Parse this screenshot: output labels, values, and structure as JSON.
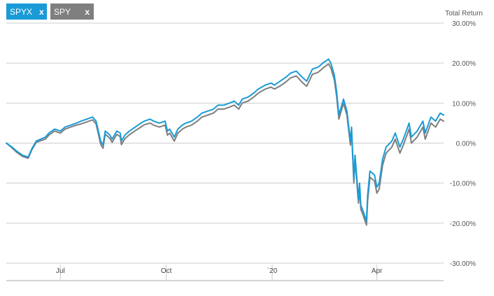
{
  "legend": {
    "items": [
      {
        "label": "SPYX",
        "remove_label": "x",
        "color": "#1a9bd7"
      },
      {
        "label": "SPY",
        "remove_label": "x",
        "color": "#7f7f7f"
      }
    ]
  },
  "chart_data": {
    "type": "line",
    "ylabel": "Total Return",
    "ylim": [
      -30,
      30
    ],
    "y_ticks": [
      30,
      20,
      10,
      0,
      -10,
      -20,
      -30
    ],
    "y_tick_labels": [
      "30.00%",
      "20.00%",
      "10.00%",
      "0.00%",
      "-10.00%",
      "-20.00%",
      "-30.00%"
    ],
    "x_tick_labels": [
      {
        "label": "Jul",
        "date": "2019-07-01"
      },
      {
        "label": "Oct",
        "date": "2019-10-01"
      },
      {
        "label": "`20",
        "date": "2020-01-01"
      },
      {
        "label": "Apr",
        "date": "2020-04-01"
      }
    ],
    "xlim": [
      "2019-05-15",
      "2020-05-29"
    ],
    "grid": true,
    "series": [
      {
        "name": "SPYX",
        "color": "#1a9bd7",
        "points": [
          [
            "2019-05-15",
            0.0
          ],
          [
            "2019-05-20",
            -1.0
          ],
          [
            "2019-05-24",
            -2.0
          ],
          [
            "2019-05-29",
            -3.0
          ],
          [
            "2019-06-03",
            -3.5
          ],
          [
            "2019-06-06",
            -1.5
          ],
          [
            "2019-06-10",
            0.5
          ],
          [
            "2019-06-14",
            1.0
          ],
          [
            "2019-06-18",
            1.5
          ],
          [
            "2019-06-21",
            2.5
          ],
          [
            "2019-06-26",
            3.5
          ],
          [
            "2019-07-01",
            3.0
          ],
          [
            "2019-07-05",
            4.0
          ],
          [
            "2019-07-10",
            4.5
          ],
          [
            "2019-07-15",
            5.0
          ],
          [
            "2019-07-19",
            5.5
          ],
          [
            "2019-07-24",
            6.0
          ],
          [
            "2019-07-29",
            6.5
          ],
          [
            "2019-08-01",
            5.5
          ],
          [
            "2019-08-05",
            0.5
          ],
          [
            "2019-08-07",
            -0.5
          ],
          [
            "2019-08-09",
            3.0
          ],
          [
            "2019-08-13",
            2.0
          ],
          [
            "2019-08-15",
            1.0
          ],
          [
            "2019-08-19",
            3.0
          ],
          [
            "2019-08-22",
            2.5
          ],
          [
            "2019-08-23",
            0.5
          ],
          [
            "2019-08-26",
            2.0
          ],
          [
            "2019-08-30",
            3.0
          ],
          [
            "2019-09-04",
            4.0
          ],
          [
            "2019-09-09",
            5.0
          ],
          [
            "2019-09-12",
            5.5
          ],
          [
            "2019-09-17",
            6.0
          ],
          [
            "2019-09-20",
            5.5
          ],
          [
            "2019-09-25",
            5.0
          ],
          [
            "2019-09-30",
            5.5
          ],
          [
            "2019-10-02",
            3.0
          ],
          [
            "2019-10-04",
            3.5
          ],
          [
            "2019-10-08",
            1.5
          ],
          [
            "2019-10-11",
            3.5
          ],
          [
            "2019-10-15",
            4.5
          ],
          [
            "2019-10-18",
            5.0
          ],
          [
            "2019-10-23",
            5.5
          ],
          [
            "2019-10-28",
            6.5
          ],
          [
            "2019-11-01",
            7.5
          ],
          [
            "2019-11-06",
            8.0
          ],
          [
            "2019-11-11",
            8.5
          ],
          [
            "2019-11-15",
            9.5
          ],
          [
            "2019-11-20",
            9.5
          ],
          [
            "2019-11-25",
            10.0
          ],
          [
            "2019-11-29",
            10.5
          ],
          [
            "2019-12-03",
            9.5
          ],
          [
            "2019-12-06",
            11.0
          ],
          [
            "2019-12-11",
            11.5
          ],
          [
            "2019-12-16",
            12.5
          ],
          [
            "2019-12-20",
            13.5
          ],
          [
            "2019-12-26",
            14.5
          ],
          [
            "2019-12-31",
            15.0
          ],
          [
            "2020-01-03",
            14.5
          ],
          [
            "2020-01-08",
            15.5
          ],
          [
            "2020-01-13",
            16.5
          ],
          [
            "2020-01-17",
            17.5
          ],
          [
            "2020-01-22",
            18.0
          ],
          [
            "2020-01-27",
            16.5
          ],
          [
            "2020-01-31",
            15.5
          ],
          [
            "2020-02-05",
            18.5
          ],
          [
            "2020-02-10",
            19.0
          ],
          [
            "2020-02-14",
            20.0
          ],
          [
            "2020-02-19",
            21.0
          ],
          [
            "2020-02-21",
            20.0
          ],
          [
            "2020-02-24",
            17.0
          ],
          [
            "2020-02-26",
            13.0
          ],
          [
            "2020-02-28",
            7.0
          ],
          [
            "2020-03-03",
            11.0
          ],
          [
            "2020-03-06",
            8.0
          ],
          [
            "2020-03-09",
            0.5
          ],
          [
            "2020-03-10",
            4.0
          ],
          [
            "2020-03-12",
            -9.0
          ],
          [
            "2020-03-13",
            -3.0
          ],
          [
            "2020-03-16",
            -14.0
          ],
          [
            "2020-03-17",
            -10.0
          ],
          [
            "2020-03-18",
            -15.5
          ],
          [
            "2020-03-20",
            -17.0
          ],
          [
            "2020-03-23",
            -19.5
          ],
          [
            "2020-03-24",
            -13.0
          ],
          [
            "2020-03-26",
            -7.0
          ],
          [
            "2020-03-30",
            -8.0
          ],
          [
            "2020-04-01",
            -11.0
          ],
          [
            "2020-04-03",
            -10.0
          ],
          [
            "2020-04-06",
            -4.0
          ],
          [
            "2020-04-09",
            -1.0
          ],
          [
            "2020-04-14",
            0.5
          ],
          [
            "2020-04-17",
            2.5
          ],
          [
            "2020-04-21",
            -1.0
          ],
          [
            "2020-04-24",
            1.0
          ],
          [
            "2020-04-29",
            5.0
          ],
          [
            "2020-05-01",
            1.5
          ],
          [
            "2020-05-06",
            3.0
          ],
          [
            "2020-05-11",
            5.5
          ],
          [
            "2020-05-13",
            2.5
          ],
          [
            "2020-05-18",
            6.5
          ],
          [
            "2020-05-22",
            5.5
          ],
          [
            "2020-05-26",
            7.5
          ],
          [
            "2020-05-29",
            7.0
          ]
        ]
      },
      {
        "name": "SPY",
        "color": "#7f7f7f",
        "points": [
          [
            "2019-05-15",
            0.0
          ],
          [
            "2019-05-20",
            -1.2
          ],
          [
            "2019-05-24",
            -2.3
          ],
          [
            "2019-05-29",
            -3.3
          ],
          [
            "2019-06-03",
            -3.8
          ],
          [
            "2019-06-06",
            -1.8
          ],
          [
            "2019-06-10",
            0.2
          ],
          [
            "2019-06-14",
            0.6
          ],
          [
            "2019-06-18",
            1.0
          ],
          [
            "2019-06-21",
            2.0
          ],
          [
            "2019-06-26",
            3.0
          ],
          [
            "2019-07-01",
            2.5
          ],
          [
            "2019-07-05",
            3.5
          ],
          [
            "2019-07-10",
            4.0
          ],
          [
            "2019-07-15",
            4.5
          ],
          [
            "2019-07-19",
            4.8
          ],
          [
            "2019-07-24",
            5.3
          ],
          [
            "2019-07-29",
            5.8
          ],
          [
            "2019-08-01",
            4.8
          ],
          [
            "2019-08-05",
            -0.3
          ],
          [
            "2019-08-07",
            -1.3
          ],
          [
            "2019-08-09",
            2.2
          ],
          [
            "2019-08-13",
            1.2
          ],
          [
            "2019-08-15",
            0.2
          ],
          [
            "2019-08-19",
            2.2
          ],
          [
            "2019-08-22",
            1.6
          ],
          [
            "2019-08-23",
            -0.4
          ],
          [
            "2019-08-26",
            1.1
          ],
          [
            "2019-08-30",
            2.1
          ],
          [
            "2019-09-04",
            3.1
          ],
          [
            "2019-09-09",
            4.0
          ],
          [
            "2019-09-12",
            4.6
          ],
          [
            "2019-09-17",
            5.0
          ],
          [
            "2019-09-20",
            4.5
          ],
          [
            "2019-09-25",
            4.0
          ],
          [
            "2019-09-30",
            4.5
          ],
          [
            "2019-10-02",
            2.0
          ],
          [
            "2019-10-04",
            2.5
          ],
          [
            "2019-10-08",
            0.5
          ],
          [
            "2019-10-11",
            2.5
          ],
          [
            "2019-10-15",
            3.5
          ],
          [
            "2019-10-18",
            4.0
          ],
          [
            "2019-10-23",
            4.5
          ],
          [
            "2019-10-28",
            5.5
          ],
          [
            "2019-11-01",
            6.5
          ],
          [
            "2019-11-06",
            7.0
          ],
          [
            "2019-11-11",
            7.5
          ],
          [
            "2019-11-15",
            8.5
          ],
          [
            "2019-11-20",
            8.5
          ],
          [
            "2019-11-25",
            9.0
          ],
          [
            "2019-11-29",
            9.5
          ],
          [
            "2019-12-03",
            8.5
          ],
          [
            "2019-12-06",
            10.0
          ],
          [
            "2019-12-11",
            10.5
          ],
          [
            "2019-12-16",
            11.5
          ],
          [
            "2019-12-20",
            12.5
          ],
          [
            "2019-12-26",
            13.5
          ],
          [
            "2019-12-31",
            14.0
          ],
          [
            "2020-01-03",
            13.5
          ],
          [
            "2020-01-08",
            14.3
          ],
          [
            "2020-01-13",
            15.3
          ],
          [
            "2020-01-17",
            16.3
          ],
          [
            "2020-01-22",
            16.8
          ],
          [
            "2020-01-27",
            15.2
          ],
          [
            "2020-01-31",
            14.2
          ],
          [
            "2020-02-05",
            17.2
          ],
          [
            "2020-02-10",
            17.7
          ],
          [
            "2020-02-14",
            18.7
          ],
          [
            "2020-02-19",
            19.8
          ],
          [
            "2020-02-21",
            18.8
          ],
          [
            "2020-02-24",
            15.8
          ],
          [
            "2020-02-26",
            11.8
          ],
          [
            "2020-02-28",
            6.0
          ],
          [
            "2020-03-03",
            10.0
          ],
          [
            "2020-03-06",
            7.0
          ],
          [
            "2020-03-09",
            -0.5
          ],
          [
            "2020-03-10",
            3.0
          ],
          [
            "2020-03-12",
            -10.0
          ],
          [
            "2020-03-13",
            -4.0
          ],
          [
            "2020-03-16",
            -15.0
          ],
          [
            "2020-03-17",
            -11.0
          ],
          [
            "2020-03-18",
            -16.5
          ],
          [
            "2020-03-20",
            -18.0
          ],
          [
            "2020-03-23",
            -20.5
          ],
          [
            "2020-03-24",
            -14.5
          ],
          [
            "2020-03-26",
            -8.5
          ],
          [
            "2020-03-30",
            -9.5
          ],
          [
            "2020-04-01",
            -12.5
          ],
          [
            "2020-04-03",
            -11.5
          ],
          [
            "2020-04-06",
            -5.5
          ],
          [
            "2020-04-09",
            -2.5
          ],
          [
            "2020-04-14",
            -1.0
          ],
          [
            "2020-04-17",
            1.0
          ],
          [
            "2020-04-21",
            -2.5
          ],
          [
            "2020-04-24",
            -0.5
          ],
          [
            "2020-04-29",
            3.5
          ],
          [
            "2020-05-01",
            0.0
          ],
          [
            "2020-05-06",
            1.5
          ],
          [
            "2020-05-11",
            4.0
          ],
          [
            "2020-05-13",
            1.0
          ],
          [
            "2020-05-18",
            5.0
          ],
          [
            "2020-05-22",
            4.0
          ],
          [
            "2020-05-26",
            6.0
          ],
          [
            "2020-05-29",
            5.5
          ]
        ]
      }
    ]
  }
}
